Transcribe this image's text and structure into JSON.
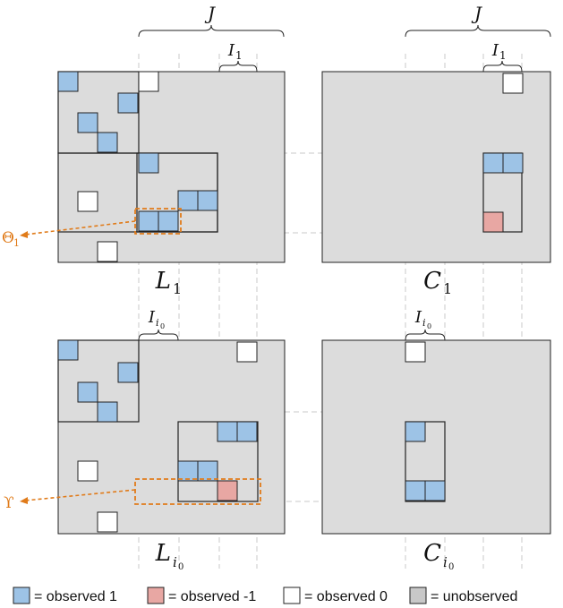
{
  "colors": {
    "observed_one": "#9dc3e6",
    "observed_neg_one": "#e8a7a3",
    "observed_zero": "#ffffff",
    "unobserved": "#dcdcdc",
    "highlight": "#e07b1a"
  },
  "labels": {
    "J": "J",
    "I_main": "I",
    "I_sub": "1",
    "L": "L",
    "C": "C",
    "one": "1",
    "i": "i",
    "zero": "0",
    "theta": "Θ",
    "theta_sub": "1",
    "upsilon": "ϒ"
  },
  "legend": {
    "observed_one": "= observed 1",
    "observed_neg_one": "= observed -1",
    "observed_zero": "= observed 0",
    "unobserved": "= unobserved"
  }
}
